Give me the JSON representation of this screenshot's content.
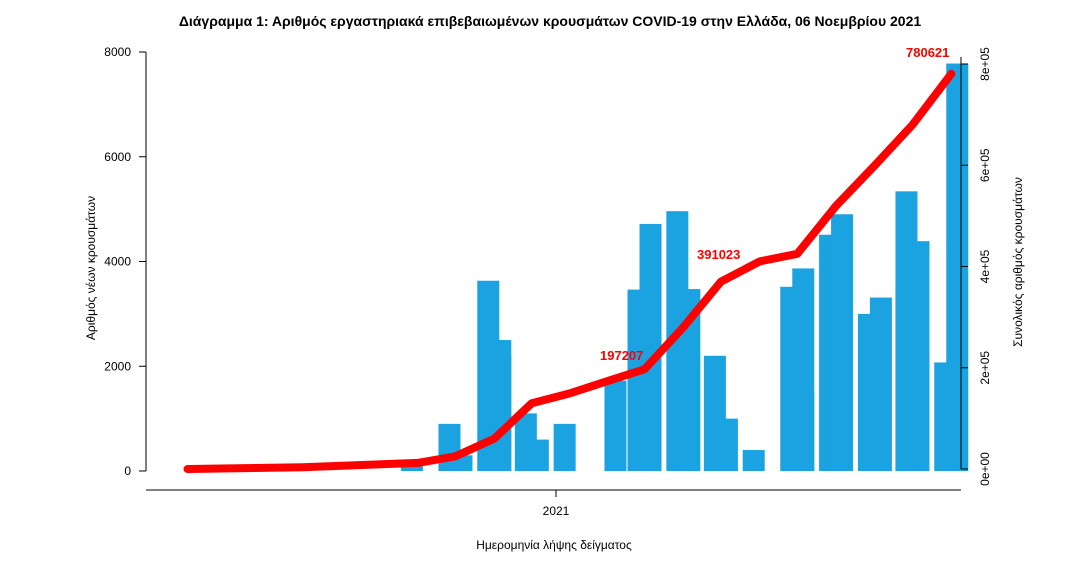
{
  "chart_data": {
    "type": "bar",
    "title": "Διάγραμμα 1: Αριθμός εργαστηριακά επιβεβαιωμένων κρουσμάτων COVID-19 στην Ελλάδα, 06 Νοεμβρίου 2021",
    "xlabel": "Ημερομηνία λήψης δείγματος",
    "ylabel": "Αριθμός νέων κρουσμάτων",
    "y2label": "Συνολικός αριθμός κρουσμάτων",
    "x_tick_label": "2021",
    "ylim": [
      0,
      8000
    ],
    "yticks": [
      "0",
      "2000",
      "4000",
      "6000",
      "8000"
    ],
    "y2lim": [
      0,
      800000
    ],
    "y2ticks": [
      "0e+00",
      "2e+05",
      "4e+05",
      "6e+05",
      "8e+05"
    ],
    "colors": {
      "bars": "#1aa3e0",
      "cumulative": "#ff0000"
    },
    "series": [
      {
        "name": "Αριθμός νέων κρουσμάτων",
        "kind": "bar",
        "x": [
          "2020-09",
          "2020-10",
          "2020-10",
          "2020-11",
          "2020-11",
          "2020-11",
          "2020-12",
          "2020-12",
          "2021-01",
          "2021-02",
          "2021-03",
          "2021-03",
          "2021-04",
          "2021-04",
          "2021-05",
          "2021-05",
          "2021-06",
          "2021-07",
          "2021-07",
          "2021-07",
          "2021-08",
          "2021-08",
          "2021-09",
          "2021-09",
          "2021-10",
          "2021-10",
          "2021-10",
          "2021-11",
          "2021-11"
        ],
        "values": [
          150,
          300,
          900,
          2200,
          3633,
          2500,
          1100,
          600,
          900,
          1725,
          3464,
          4717,
          4961,
          3474,
          2200,
          1000,
          400,
          1500,
          3517,
          3868,
          4511,
          4902,
          3000,
          3312,
          3551,
          4388,
          5340,
          7780,
          2073
        ]
      },
      {
        "name": "Συνολικός αριθμός κρουσμάτων",
        "kind": "line",
        "x": [
          "2020-03",
          "2020-06",
          "2020-09",
          "2020-10",
          "2020-11",
          "2020-12",
          "2021-01",
          "2021-02",
          "2021-03",
          "2021-04",
          "2021-05",
          "2021-06",
          "2021-07",
          "2021-08",
          "2021-09",
          "2021-10",
          "2021-11"
        ],
        "values": [
          0,
          3500,
          12000,
          25000,
          60000,
          130000,
          150000,
          175000,
          197000,
          280000,
          370000,
          410000,
          425000,
          520000,
          600000,
          680000,
          780621
        ]
      }
    ],
    "annotations": [
      "197207",
      "391023",
      "780621"
    ]
  }
}
